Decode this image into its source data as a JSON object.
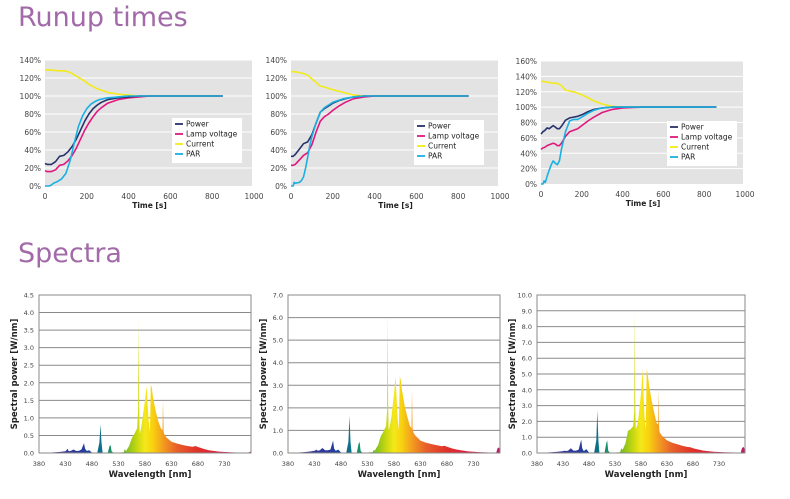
{
  "sections": {
    "runup_title": "Runup times",
    "spectra_title": "Spectra"
  },
  "colors": {
    "title": "#a26aa8",
    "power": "#26326b",
    "lamp_voltage": "#e0187e",
    "current": "#f2ea1a",
    "par": "#1ab0e2",
    "runup_bg": "#e3e3e3"
  },
  "chart_data": [
    {
      "type": "line",
      "id": "runup-1",
      "title": "",
      "xlabel": "Time [s]",
      "ylabel": "",
      "xlim": [
        0,
        1000
      ],
      "ylim": [
        0,
        140
      ],
      "xticks": [
        "0",
        "200",
        "400",
        "600",
        "800",
        "1000"
      ],
      "yticks": [
        "0%",
        "20%",
        "40%",
        "60%",
        "80%",
        "100%",
        "120%",
        "140%"
      ],
      "legend": [
        "Power",
        "Lamp voltage",
        "Current",
        "PAR"
      ],
      "legend_position": "center-right",
      "grid": true,
      "series": [
        {
          "name": "Power",
          "x": [
            0,
            10,
            30,
            50,
            70,
            90,
            110,
            130,
            150,
            170,
            190,
            210,
            230,
            250,
            270,
            300,
            350,
            400,
            450,
            500,
            600,
            700,
            850
          ],
          "y": [
            25,
            24,
            24,
            27,
            33,
            34,
            38,
            44,
            52,
            62,
            72,
            80,
            86,
            90,
            93,
            96,
            98,
            99,
            100,
            100,
            100,
            100,
            100
          ]
        },
        {
          "name": "Lamp voltage",
          "x": [
            0,
            10,
            30,
            50,
            70,
            90,
            110,
            130,
            150,
            170,
            190,
            210,
            230,
            250,
            270,
            300,
            350,
            400,
            450,
            500,
            600,
            700,
            850
          ],
          "y": [
            17,
            16,
            16,
            18,
            23,
            24,
            28,
            34,
            42,
            52,
            62,
            70,
            77,
            83,
            87,
            92,
            96,
            98,
            99,
            100,
            100,
            100,
            100
          ]
        },
        {
          "name": "Current",
          "x": [
            0,
            30,
            60,
            90,
            110,
            130,
            150,
            180,
            210,
            250,
            300,
            350,
            400,
            450,
            500,
            600,
            700,
            850
          ],
          "y": [
            129,
            129,
            128,
            128,
            127,
            125,
            122,
            118,
            113,
            108,
            104,
            102,
            101,
            100,
            100,
            100,
            100,
            100
          ]
        },
        {
          "name": "PAR",
          "x": [
            0,
            10,
            20,
            30,
            40,
            60,
            80,
            100,
            120,
            140,
            160,
            180,
            200,
            220,
            240,
            260,
            280,
            300,
            350,
            400,
            500,
            600,
            850
          ],
          "y": [
            0,
            0,
            0,
            1,
            3,
            5,
            8,
            14,
            28,
            48,
            66,
            78,
            86,
            91,
            94,
            96,
            97,
            98,
            99,
            100,
            100,
            100,
            100
          ]
        }
      ]
    },
    {
      "type": "line",
      "id": "runup-2",
      "title": "",
      "xlabel": "Time [s]",
      "ylabel": "",
      "xlim": [
        0,
        1000
      ],
      "ylim": [
        0,
        140
      ],
      "xticks": [
        "0",
        "200",
        "400",
        "600",
        "800",
        "1000"
      ],
      "yticks": [
        "0%",
        "20%",
        "40%",
        "60%",
        "80%",
        "100%",
        "120%",
        "140%"
      ],
      "legend": [
        "Power",
        "Lamp voltage",
        "Current",
        "PAR"
      ],
      "legend_position": "center-right",
      "grid": true,
      "series": [
        {
          "name": "Power",
          "x": [
            0,
            10,
            20,
            40,
            60,
            80,
            100,
            120,
            140,
            160,
            180,
            200,
            230,
            260,
            300,
            350,
            400,
            500,
            850
          ],
          "y": [
            33,
            33,
            35,
            41,
            47,
            49,
            57,
            70,
            82,
            86,
            89,
            92,
            95,
            97,
            99,
            100,
            100,
            100,
            100
          ]
        },
        {
          "name": "Lamp voltage",
          "x": [
            0,
            10,
            20,
            40,
            60,
            80,
            100,
            120,
            140,
            160,
            180,
            200,
            230,
            260,
            300,
            350,
            400,
            500,
            850
          ],
          "y": [
            23,
            23,
            24,
            29,
            34,
            37,
            46,
            60,
            72,
            77,
            80,
            84,
            89,
            93,
            97,
            99,
            100,
            100,
            100
          ]
        },
        {
          "name": "Current",
          "x": [
            0,
            20,
            40,
            60,
            80,
            100,
            120,
            140,
            160,
            200,
            250,
            300,
            350,
            400,
            500,
            850
          ],
          "y": [
            127,
            127,
            126,
            125,
            123,
            119,
            115,
            111,
            110,
            107,
            104,
            101,
            100,
            100,
            100,
            100
          ]
        },
        {
          "name": "PAR",
          "x": [
            0,
            10,
            15,
            20,
            40,
            50,
            60,
            70,
            80,
            90,
            100,
            120,
            140,
            160,
            180,
            200,
            250,
            300,
            350,
            400,
            850
          ],
          "y": [
            0,
            0,
            4,
            3,
            4,
            6,
            10,
            20,
            32,
            45,
            55,
            70,
            82,
            87,
            90,
            93,
            97,
            99,
            100,
            100,
            100
          ]
        }
      ]
    },
    {
      "type": "line",
      "id": "runup-3",
      "title": "",
      "xlabel": "Time [s]",
      "ylabel": "",
      "xlim": [
        0,
        1000
      ],
      "ylim": [
        0,
        160
      ],
      "xticks": [
        "0",
        "200",
        "400",
        "600",
        "800",
        "1000"
      ],
      "yticks": [
        "0%",
        "20%",
        "40%",
        "60%",
        "80%",
        "100%",
        "120%",
        "140%",
        "160%"
      ],
      "legend": [
        "Power",
        "Lamp voltage",
        "Current",
        "PAR"
      ],
      "legend_position": "center-right",
      "grid": true,
      "series": [
        {
          "name": "Power",
          "x": [
            0,
            10,
            20,
            30,
            40,
            50,
            60,
            70,
            80,
            90,
            100,
            120,
            140,
            160,
            180,
            200,
            230,
            260,
            300,
            350,
            400,
            500,
            860
          ],
          "y": [
            65,
            68,
            70,
            73,
            72,
            74,
            76,
            74,
            72,
            72,
            75,
            83,
            86,
            87,
            88,
            90,
            94,
            97,
            99,
            100,
            100,
            100,
            100
          ]
        },
        {
          "name": "Lamp voltage",
          "x": [
            0,
            10,
            20,
            30,
            40,
            50,
            60,
            70,
            80,
            90,
            100,
            120,
            140,
            160,
            180,
            200,
            230,
            260,
            300,
            350,
            400,
            500,
            860
          ],
          "y": [
            45,
            47,
            48,
            50,
            51,
            52,
            53,
            52,
            50,
            50,
            53,
            62,
            68,
            70,
            72,
            76,
            82,
            87,
            93,
            97,
            99,
            100,
            100
          ]
        },
        {
          "name": "Current",
          "x": [
            0,
            20,
            40,
            60,
            80,
            100,
            120,
            140,
            160,
            180,
            200,
            230,
            260,
            300,
            350,
            400,
            450,
            500,
            860
          ],
          "y": [
            134,
            133,
            132,
            131,
            131,
            128,
            122,
            121,
            120,
            118,
            116,
            112,
            108,
            104,
            101,
            100,
            100,
            100,
            100
          ]
        },
        {
          "name": "PAR",
          "x": [
            0,
            10,
            15,
            20,
            25,
            30,
            40,
            50,
            60,
            70,
            80,
            90,
            100,
            120,
            140,
            160,
            180,
            200,
            230,
            260,
            300,
            350,
            400,
            860
          ],
          "y": [
            0,
            0,
            4,
            2,
            5,
            10,
            18,
            25,
            30,
            27,
            25,
            30,
            45,
            68,
            82,
            84,
            84,
            87,
            92,
            96,
            99,
            100,
            100,
            100
          ]
        }
      ]
    },
    {
      "type": "area",
      "id": "spectrum-1",
      "title": "",
      "xlabel": "Wavelength  [nm]",
      "ylabel": "Spectral power  [W/nm]",
      "xlim": [
        380,
        780
      ],
      "ylim": [
        0,
        4.5
      ],
      "xticks": [
        "380",
        "430",
        "480",
        "530",
        "580",
        "630",
        "680",
        "730"
      ],
      "yticks": [
        "0.0",
        "0.5",
        "1.0",
        "1.5",
        "2.0",
        "2.5",
        "3.0",
        "3.5",
        "4.0",
        "4.5"
      ],
      "grid": true,
      "x": [
        380,
        400,
        410,
        420,
        430,
        434,
        436,
        440,
        445,
        450,
        455,
        460,
        465,
        467,
        470,
        475,
        480,
        485,
        490,
        494,
        496,
        498,
        500,
        505,
        510,
        513,
        515,
        517,
        520,
        530,
        540,
        542,
        544,
        546,
        550,
        555,
        560,
        565,
        567,
        568,
        569,
        570,
        571,
        573,
        575,
        580,
        583,
        585,
        587,
        589,
        590,
        591,
        593,
        595,
        600,
        605,
        610,
        613,
        614,
        615,
        616,
        618,
        620,
        630,
        640,
        650,
        660,
        670,
        675,
        680,
        690,
        700,
        720,
        740,
        760,
        775,
        780
      ],
      "y": [
        0,
        0.01,
        0.02,
        0.03,
        0.05,
        0.12,
        0.05,
        0.06,
        0.1,
        0.06,
        0.06,
        0.1,
        0.28,
        0.12,
        0.06,
        0.08,
        0.01,
        0.01,
        0.01,
        0.3,
        0.82,
        0.3,
        0.01,
        0.01,
        0.01,
        0.2,
        0.22,
        0.05,
        0.01,
        0.01,
        0.02,
        0.12,
        0.05,
        0.1,
        0.2,
        0.42,
        0.55,
        0.7,
        1.2,
        3.8,
        1.2,
        0.55,
        0.6,
        0.75,
        0.95,
        1.5,
        1.9,
        1.4,
        0.9,
        0.6,
        1.2,
        1.95,
        1.85,
        1.6,
        1.2,
        0.9,
        0.7,
        0.65,
        1.5,
        0.62,
        0.55,
        0.5,
        0.45,
        0.32,
        0.27,
        0.23,
        0.2,
        0.18,
        0.2,
        0.17,
        0.12,
        0.08,
        0.04,
        0.02,
        0.01,
        0.01,
        0.05
      ]
    },
    {
      "type": "area",
      "id": "spectrum-2",
      "title": "",
      "xlabel": "Wavelength  [nm]",
      "ylabel": "Spectral power  [W/nm]",
      "xlim": [
        380,
        780
      ],
      "ylim": [
        0,
        7.0
      ],
      "xticks": [
        "380",
        "430",
        "480",
        "530",
        "580",
        "630",
        "680",
        "730"
      ],
      "yticks": [
        "0.0",
        "1.0",
        "2.0",
        "3.0",
        "4.0",
        "5.0",
        "6.0",
        "7.0"
      ],
      "grid": true,
      "x": [
        380,
        400,
        410,
        420,
        430,
        434,
        436,
        440,
        445,
        450,
        455,
        460,
        465,
        467,
        470,
        475,
        480,
        485,
        490,
        494,
        496,
        498,
        500,
        505,
        510,
        513,
        515,
        517,
        520,
        530,
        540,
        542,
        544,
        546,
        550,
        555,
        560,
        565,
        567,
        568,
        569,
        570,
        571,
        573,
        575,
        580,
        583,
        585,
        587,
        589,
        590,
        591,
        593,
        595,
        600,
        605,
        610,
        613,
        614,
        615,
        616,
        618,
        620,
        630,
        640,
        650,
        660,
        670,
        675,
        680,
        690,
        700,
        720,
        740,
        760,
        773,
        775,
        778,
        780
      ],
      "y": [
        0,
        0.02,
        0.04,
        0.06,
        0.1,
        0.15,
        0.1,
        0.12,
        0.22,
        0.12,
        0.12,
        0.15,
        0.55,
        0.2,
        0.1,
        0.15,
        0.02,
        0.02,
        0.02,
        0.5,
        1.65,
        0.5,
        0.02,
        0.02,
        0.02,
        0.4,
        0.5,
        0.1,
        0.02,
        0.02,
        0.04,
        0.15,
        0.1,
        0.2,
        0.35,
        0.75,
        0.95,
        1.2,
        1.9,
        6.1,
        2.0,
        1.0,
        1.1,
        1.3,
        1.6,
        2.6,
        3.4,
        2.4,
        1.5,
        1.0,
        2.2,
        3.4,
        3.2,
        2.8,
        2.1,
        1.6,
        1.2,
        1.1,
        2.8,
        1.05,
        0.95,
        0.85,
        0.78,
        0.55,
        0.46,
        0.4,
        0.35,
        0.3,
        0.32,
        0.28,
        0.2,
        0.14,
        0.07,
        0.04,
        0.02,
        0.02,
        0.2,
        0.25,
        0.15
      ]
    },
    {
      "type": "area",
      "id": "spectrum-3",
      "title": "",
      "xlabel": "Wavelength  [nm]",
      "ylabel": "Spectral power  [W/nm]",
      "xlim": [
        380,
        780
      ],
      "ylim": [
        0,
        10.0
      ],
      "xticks": [
        "380",
        "430",
        "480",
        "530",
        "580",
        "630",
        "680",
        "730"
      ],
      "yticks": [
        "0.0",
        "1.0",
        "2.0",
        "3.0",
        "4.0",
        "5.0",
        "6.0",
        "7.0",
        "8.0",
        "9.0",
        "10.0"
      ],
      "grid": true,
      "x": [
        380,
        400,
        410,
        420,
        430,
        434,
        436,
        440,
        445,
        450,
        455,
        460,
        465,
        467,
        470,
        475,
        480,
        485,
        490,
        494,
        496,
        498,
        500,
        505,
        510,
        513,
        515,
        517,
        520,
        530,
        540,
        542,
        544,
        546,
        550,
        555,
        560,
        565,
        567,
        568,
        569,
        570,
        571,
        573,
        575,
        580,
        583,
        585,
        587,
        589,
        590,
        591,
        593,
        595,
        600,
        605,
        610,
        613,
        614,
        615,
        616,
        618,
        620,
        630,
        640,
        650,
        660,
        670,
        675,
        680,
        690,
        700,
        720,
        740,
        760,
        772,
        774,
        777,
        780
      ],
      "y": [
        0,
        0.03,
        0.06,
        0.08,
        0.12,
        0.15,
        0.12,
        0.15,
        0.3,
        0.15,
        0.15,
        0.2,
        0.85,
        0.3,
        0.12,
        0.25,
        0.03,
        0.03,
        0.03,
        0.8,
        2.7,
        0.8,
        0.03,
        0.03,
        0.03,
        0.6,
        0.8,
        0.15,
        0.03,
        0.03,
        0.05,
        0.3,
        0.2,
        0.3,
        0.6,
        1.4,
        1.5,
        1.7,
        2.6,
        8.9,
        2.8,
        1.5,
        1.6,
        1.8,
        2.2,
        3.8,
        5.3,
        3.6,
        2.2,
        1.5,
        3.3,
        5.3,
        5.0,
        4.4,
        3.4,
        2.6,
        1.9,
        1.8,
        4.1,
        1.5,
        1.3,
        1.2,
        1.1,
        0.8,
        0.65,
        0.55,
        0.45,
        0.38,
        0.36,
        0.3,
        0.22,
        0.15,
        0.08,
        0.05,
        0.03,
        0.03,
        0.3,
        0.4,
        0.2
      ]
    }
  ]
}
